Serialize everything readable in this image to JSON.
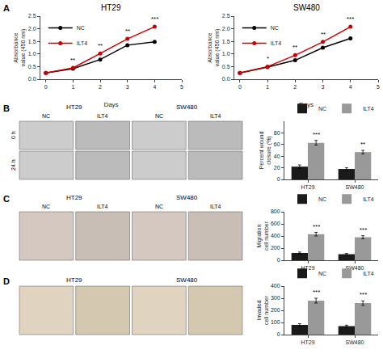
{
  "chart_data": [
    {
      "type": "line",
      "panel": "A",
      "title": "HT29",
      "xlabel": "Days",
      "ylabel": "Absorbance value (450 nm)",
      "x": [
        0,
        1,
        2,
        3,
        4
      ],
      "series": [
        {
          "name": "NC",
          "color": "#000000",
          "marker": "circle",
          "values": [
            0.25,
            0.42,
            0.78,
            1.35,
            1.48
          ]
        },
        {
          "name": "ILT4",
          "color": "#cc0000",
          "marker": "circle",
          "values": [
            0.25,
            0.45,
            1.02,
            1.6,
            2.08
          ]
        }
      ],
      "xlim": [
        -0.2,
        5
      ],
      "xticks": [
        0,
        1,
        2,
        3,
        4,
        5
      ],
      "ylim": [
        0,
        2.5
      ],
      "yticks": [
        {
          "value": 0,
          "label": "0.0"
        },
        0.5,
        {
          "value": 1,
          "label": "1.0"
        },
        1.5,
        {
          "value": 2,
          "label": "2.0"
        },
        2.5
      ],
      "grid": false,
      "legend": "upper left",
      "annotations": [
        {
          "x": 1,
          "series": "ILT4",
          "text": "**"
        },
        {
          "x": 2,
          "series": "ILT4",
          "text": "**"
        },
        {
          "x": 3,
          "series": "ILT4",
          "text": "**"
        },
        {
          "x": 4,
          "series": "ILT4",
          "text": "***"
        }
      ]
    },
    {
      "type": "line",
      "title": "SW480",
      "xlabel": "Days",
      "ylabel": "Absorbance value (450 nm)",
      "x": [
        0,
        1,
        2,
        3,
        4
      ],
      "series": [
        {
          "name": "NC",
          "color": "#000000",
          "marker": "circle",
          "values": [
            0.25,
            0.48,
            0.75,
            1.25,
            1.62
          ]
        },
        {
          "name": "ILT4",
          "color": "#cc0000",
          "marker": "circle",
          "values": [
            0.25,
            0.5,
            0.95,
            1.48,
            2.08
          ]
        }
      ],
      "xlim": [
        -0.2,
        5
      ],
      "xticks": [
        0,
        1,
        2,
        3,
        4,
        5
      ],
      "ylim": [
        0,
        2.5
      ],
      "yticks": [
        {
          "value": 0,
          "label": "0.0"
        },
        0.5,
        {
          "value": 1,
          "label": "1.0"
        },
        1.5,
        {
          "value": 2,
          "label": "2.0"
        },
        2.5
      ],
      "grid": false,
      "legend": "upper left",
      "annotations": [
        {
          "x": 1,
          "series": "ILT4",
          "text": "*"
        },
        {
          "x": 2,
          "series": "ILT4",
          "text": "**"
        },
        {
          "x": 3,
          "series": "ILT4",
          "text": "**"
        },
        {
          "x": 4,
          "series": "ILT4",
          "text": "***"
        }
      ]
    },
    {
      "type": "image_grid",
      "panel": "B",
      "headers": [
        "HT29",
        "SW480"
      ],
      "col_labels": [
        "NC",
        "ILT4",
        "NC",
        "ILT4"
      ],
      "row_labels": [
        "0 h",
        "24 h"
      ],
      "colors": [
        "#cccccc",
        "#bbbbbb",
        "#cccccc",
        "#bbbbbb",
        "#cccccc",
        "#bbbbbb",
        "#cccccc",
        "#bbbbbb"
      ]
    },
    {
      "type": "bar",
      "ylabel": "Percent wound closure (%)",
      "categories": [
        "HT29",
        "SW480"
      ],
      "series": [
        {
          "name": "NC",
          "color": "#1a1a1a",
          "values": [
            22,
            18
          ],
          "error": [
            3,
            2
          ]
        },
        {
          "name": "ILT4",
          "color": "#999999",
          "values": [
            63,
            47
          ],
          "error": [
            4,
            3
          ]
        }
      ],
      "ylim": [
        0,
        100
      ],
      "yticks": [
        0,
        20,
        40,
        60,
        80
      ],
      "grid": false,
      "legend": "upper right",
      "annotations": [
        {
          "category": "HT29",
          "series": "ILT4",
          "text": "***"
        },
        {
          "category": "SW480",
          "series": "ILT4",
          "text": "**"
        }
      ]
    },
    {
      "type": "image_grid",
      "panel": "C",
      "headers": [
        "HT29",
        "SW480"
      ],
      "col_labels": [
        "NC",
        "ILT4",
        "NC",
        "ILT4"
      ],
      "colors": [
        "#d4c8c0",
        "#c8beb6",
        "#d4c8c0",
        "#c8beb6"
      ]
    },
    {
      "type": "bar",
      "ylabel": "Migration cell number",
      "categories": [
        "HT29",
        "SW480"
      ],
      "series": [
        {
          "name": "NC",
          "color": "#1a1a1a",
          "values": [
            120,
            100
          ],
          "error": [
            15,
            12
          ]
        },
        {
          "name": "ILT4",
          "color": "#999999",
          "values": [
            430,
            380
          ],
          "error": [
            30,
            25
          ]
        }
      ],
      "ylim": [
        0,
        800
      ],
      "yticks": [
        0,
        200,
        400,
        600,
        800
      ],
      "grid": false,
      "legend": "upper right",
      "annotations": [
        {
          "category": "HT29",
          "series": "ILT4",
          "text": "***"
        },
        {
          "category": "SW480",
          "series": "ILT4",
          "text": "***"
        }
      ]
    },
    {
      "type": "image_grid",
      "panel": "D",
      "headers": [
        "HT29",
        "SW480"
      ],
      "colors": [
        "#e0d4c0",
        "#d4c8b0",
        "#e0d4c0",
        "#d4c8b0"
      ]
    },
    {
      "type": "bar",
      "ylabel": "Invaded cell number",
      "categories": [
        "HT29",
        "SW480"
      ],
      "series": [
        {
          "name": "NC",
          "color": "#1a1a1a",
          "values": [
            80,
            70
          ],
          "error": [
            10,
            8
          ]
        },
        {
          "name": "ILT4",
          "color": "#999999",
          "values": [
            280,
            260
          ],
          "error": [
            20,
            18
          ]
        }
      ],
      "ylim": [
        0,
        400
      ],
      "yticks": [
        0,
        100,
        200,
        300,
        400
      ],
      "grid": false,
      "legend": "upper right",
      "annotations": [
        {
          "category": "HT29",
          "series": "ILT4",
          "text": "***"
        },
        {
          "category": "SW480",
          "series": "ILT4",
          "text": "***"
        }
      ]
    }
  ]
}
